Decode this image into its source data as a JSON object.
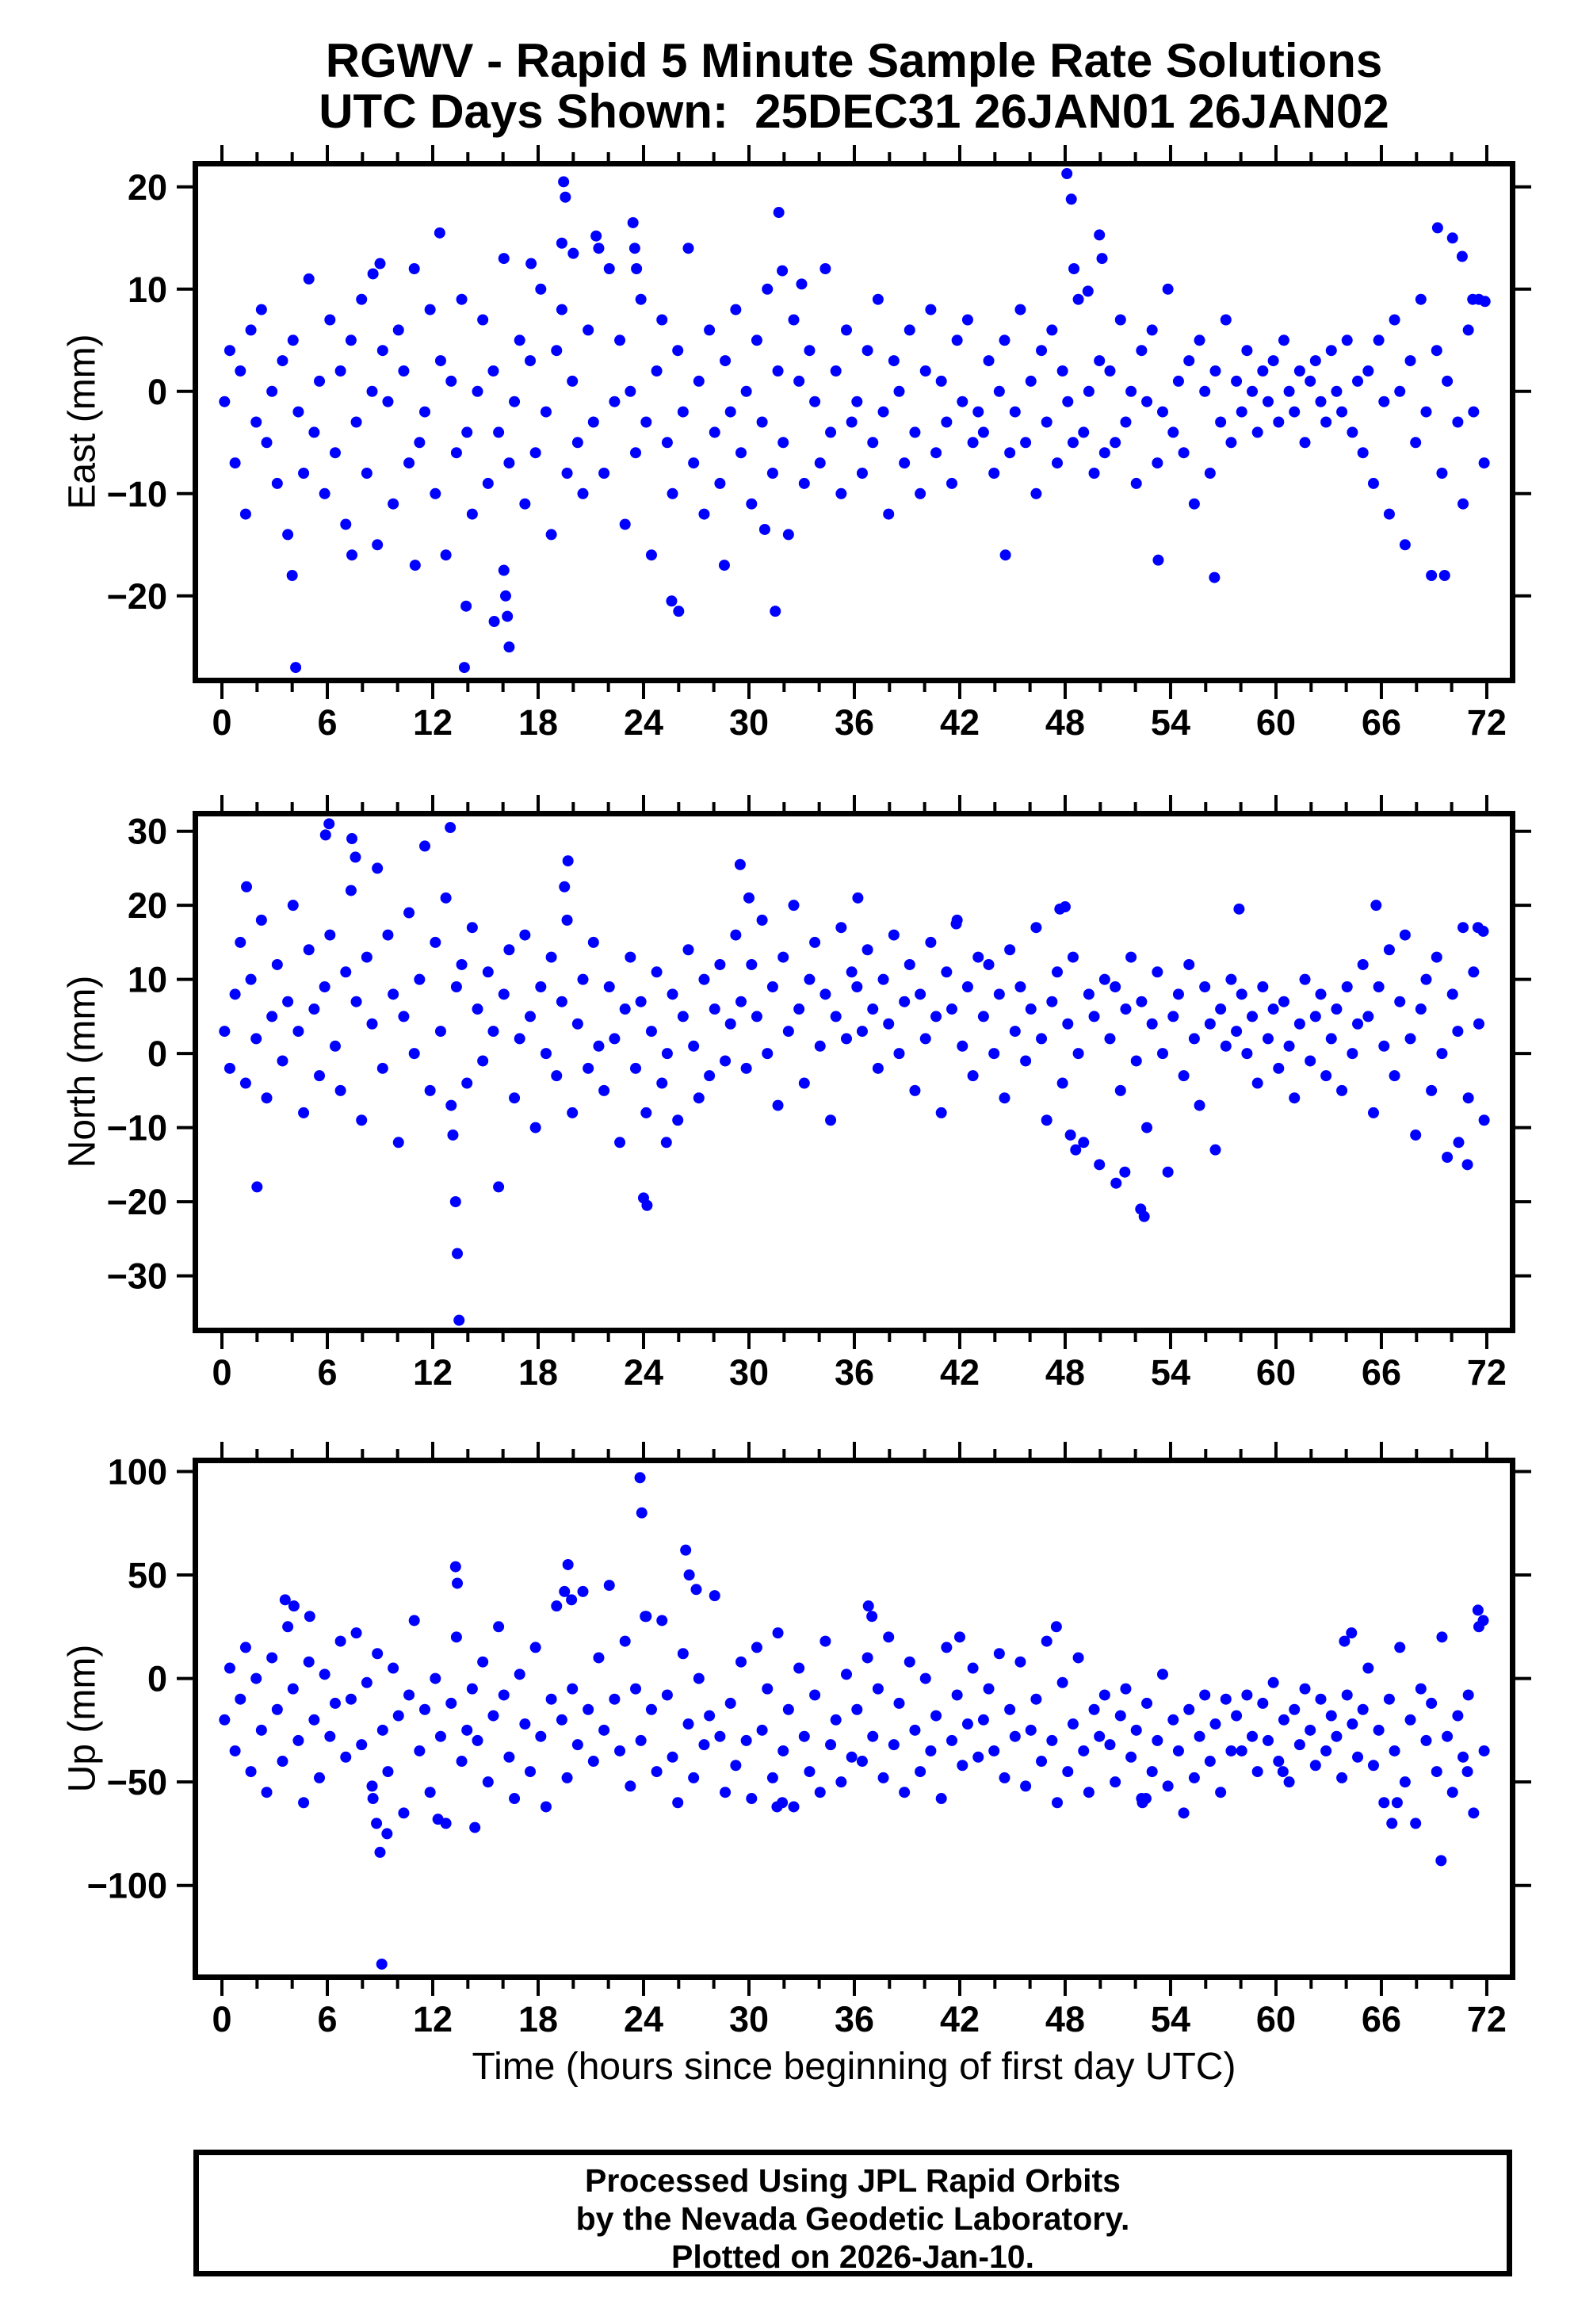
{
  "title": {
    "line1": "RGWV - Rapid 5 Minute Sample Rate Solutions",
    "line2": "UTC Days Shown:  25DEC31 26JAN01 26JAN02"
  },
  "xlabel": "Time (hours since beginning of first day UTC)",
  "footer": {
    "line1": "Processed Using JPL Rapid Orbits",
    "line2": "by the Nevada Geodetic Laboratory.",
    "line3": "Plotted on 2026-Jan-10."
  },
  "colors": {
    "point": "#0000ff",
    "axis": "#000000",
    "background": "#ffffff"
  },
  "axes": {
    "x": {
      "range": [
        -1.35,
        73.35
      ],
      "major_ticks": [
        0,
        6,
        12,
        18,
        24,
        30,
        36,
        42,
        48,
        54,
        60,
        66,
        72
      ],
      "minor_step": 2,
      "tick_labels": [
        "0",
        "6",
        "12",
        "18",
        "24",
        "30",
        "36",
        "42",
        "48",
        "54",
        "60",
        "66",
        "72"
      ]
    }
  },
  "chart_data": [
    {
      "type": "scatter",
      "name": "east",
      "ylabel": "East (mm)",
      "ylim": [
        -28,
        22
      ],
      "yticks": [
        -20,
        -10,
        0,
        10,
        20
      ],
      "x_start": 0.15,
      "x_step": 0.3,
      "y": [
        -1,
        4,
        -7,
        2,
        -12,
        6,
        -3,
        8,
        -5,
        0,
        -9,
        3,
        -14,
        5,
        -2,
        -8,
        11,
        -4,
        1,
        -10,
        7,
        -6,
        2,
        -13,
        5,
        -3,
        9,
        -8,
        0,
        -15,
        4,
        -1,
        -11,
        6,
        2,
        -7,
        12,
        -5,
        -2,
        8,
        -10,
        3,
        -16,
        1,
        -6,
        9,
        -4,
        -12,
        0,
        7,
        -9,
        2,
        -4,
        13,
        -7,
        -1,
        5,
        -11,
        3,
        -6,
        10,
        -2,
        -14,
        4,
        8,
        -8,
        1,
        -5,
        -10,
        6,
        -3,
        14,
        -8,
        12,
        -1,
        5,
        -13,
        0,
        -6,
        9,
        -3,
        -16,
        2,
        7,
        -5,
        -10,
        4,
        -2,
        14,
        -7,
        1,
        -12,
        6,
        -4,
        -9,
        3,
        -2,
        8,
        -6,
        0,
        -11,
        5,
        -3,
        10,
        -8,
        2,
        -5,
        -14,
        7,
        1,
        -9,
        4,
        -1,
        -7,
        12,
        -4,
        2,
        -10,
        6,
        -3,
        -1,
        -8,
        4,
        -5,
        9,
        -2,
        -12,
        3,
        0,
        -7,
        6,
        -4,
        -10,
        2,
        8,
        -6,
        1,
        -3,
        -9,
        5,
        -1,
        7,
        -5,
        -2,
        -4,
        3,
        -8,
        0,
        5,
        -6,
        -2,
        8,
        -5,
        1,
        -10,
        4,
        -3,
        6,
        -7,
        2,
        -1,
        -5,
        9,
        -4,
        0,
        -8,
        3,
        -6,
        2,
        -5,
        7,
        -3,
        0,
        -9,
        4,
        -1,
        6,
        -7,
        -2,
        10,
        -4,
        1,
        -6,
        3,
        -11,
        5,
        0,
        -8,
        2,
        -3,
        7,
        -5,
        1,
        -2,
        4,
        0,
        -4,
        2,
        -1,
        3,
        -3,
        5,
        0,
        -2,
        2,
        -5,
        1,
        3,
        -1,
        -3,
        4,
        0,
        -2,
        5,
        -4,
        1,
        -6,
        2,
        -9,
        5,
        -1,
        -12,
        7,
        0,
        -15,
        3,
        -5,
        9,
        -2,
        -18,
        4,
        -8,
        1,
        15,
        -3,
        -11,
        6,
        -2,
        9,
        -7
      ],
      "extra_points": [
        [
          4.0,
          -18
        ],
        [
          4.2,
          -27
        ],
        [
          7.4,
          -16
        ],
        [
          8.6,
          11.5
        ],
        [
          9.0,
          12.5
        ],
        [
          11.0,
          -17
        ],
        [
          12.4,
          15.5
        ],
        [
          13.8,
          -27
        ],
        [
          13.9,
          -21
        ],
        [
          15.5,
          -22.5
        ],
        [
          16.05,
          -17.5
        ],
        [
          16.15,
          -20
        ],
        [
          16.25,
          -22
        ],
        [
          16.35,
          -25
        ],
        [
          17.6,
          12.5
        ],
        [
          19.35,
          14.5
        ],
        [
          19.45,
          20.5
        ],
        [
          19.55,
          19
        ],
        [
          20.0,
          13.5
        ],
        [
          21.3,
          15.2
        ],
        [
          23.4,
          16.5
        ],
        [
          23.5,
          14
        ],
        [
          23.6,
          12
        ],
        [
          25.6,
          -20.5
        ],
        [
          26.0,
          -21.5
        ],
        [
          28.6,
          -17
        ],
        [
          30.9,
          -13.5
        ],
        [
          31.5,
          -21.5
        ],
        [
          31.7,
          17.5
        ],
        [
          31.9,
          11.8
        ],
        [
          33.0,
          10.5
        ],
        [
          44.6,
          -16
        ],
        [
          48.1,
          21.3
        ],
        [
          48.35,
          18.8
        ],
        [
          48.5,
          12
        ],
        [
          49.3,
          9.8
        ],
        [
          49.95,
          15.3
        ],
        [
          50.1,
          13
        ],
        [
          53.3,
          -16.5
        ],
        [
          56.5,
          -18.2
        ],
        [
          69.2,
          16
        ],
        [
          69.6,
          -18
        ],
        [
          70.6,
          13.2
        ],
        [
          71.2,
          9
        ],
        [
          71.9,
          8.8
        ]
      ]
    },
    {
      "type": "scatter",
      "name": "north",
      "ylabel": "North (mm)",
      "ylim": [
        -37,
        32
      ],
      "yticks": [
        -30,
        -20,
        -10,
        0,
        10,
        20,
        30
      ],
      "x_start": 0.15,
      "x_step": 0.3,
      "y": [
        3,
        -2,
        8,
        15,
        -4,
        10,
        2,
        18,
        -6,
        5,
        12,
        -1,
        7,
        20,
        3,
        -8,
        14,
        6,
        -3,
        9,
        16,
        1,
        -5,
        11,
        22,
        7,
        -9,
        13,
        4,
        25,
        -2,
        16,
        8,
        -12,
        5,
        19,
        0,
        10,
        28,
        -5,
        15,
        3,
        21,
        -7,
        9,
        12,
        -4,
        17,
        6,
        -1,
        11,
        3,
        -18,
        8,
        14,
        -6,
        2,
        16,
        5,
        -10,
        9,
        0,
        13,
        -3,
        7,
        18,
        -8,
        4,
        10,
        -2,
        15,
        1,
        -5,
        9,
        2,
        -12,
        6,
        13,
        -2,
        7,
        -8,
        3,
        11,
        -4,
        0,
        8,
        -9,
        5,
        14,
        1,
        -6,
        10,
        -3,
        6,
        12,
        -1,
        4,
        16,
        7,
        -2,
        12,
        5,
        18,
        0,
        9,
        -7,
        13,
        3,
        20,
        6,
        -4,
        10,
        15,
        1,
        8,
        -9,
        5,
        17,
        2,
        11,
        9,
        3,
        14,
        6,
        -2,
        10,
        4,
        16,
        0,
        7,
        12,
        -5,
        8,
        2,
        15,
        5,
        -8,
        11,
        6,
        18,
        1,
        9,
        -3,
        13,
        5,
        12,
        0,
        8,
        -6,
        14,
        3,
        9,
        -1,
        6,
        17,
        2,
        -9,
        7,
        11,
        -4,
        4,
        13,
        0,
        -12,
        8,
        5,
        -15,
        10,
        2,
        9,
        -5,
        6,
        13,
        -1,
        7,
        -10,
        4,
        11,
        0,
        -16,
        5,
        8,
        -3,
        12,
        2,
        -7,
        9,
        4,
        -13,
        6,
        1,
        10,
        3,
        8,
        0,
        5,
        -4,
        9,
        2,
        6,
        -2,
        7,
        1,
        -6,
        4,
        10,
        -1,
        5,
        8,
        -3,
        2,
        6,
        -5,
        9,
        0,
        4,
        12,
        5,
        -8,
        9,
        1,
        14,
        -3,
        7,
        16,
        2,
        -11,
        6,
        10,
        -5,
        13,
        0,
        -14,
        8,
        3,
        17,
        -6,
        11,
        4,
        -9
      ],
      "extra_points": [
        [
          1.4,
          22.5
        ],
        [
          2.0,
          -18
        ],
        [
          5.9,
          29.5
        ],
        [
          6.1,
          31
        ],
        [
          7.4,
          29
        ],
        [
          7.6,
          26.5
        ],
        [
          13.0,
          30.5
        ],
        [
          13.15,
          -11
        ],
        [
          13.3,
          -20
        ],
        [
          13.4,
          -27
        ],
        [
          13.5,
          -36
        ],
        [
          19.5,
          22.5
        ],
        [
          19.7,
          26
        ],
        [
          24.0,
          -19.5
        ],
        [
          24.2,
          -20.5
        ],
        [
          25.3,
          -12
        ],
        [
          29.5,
          25.5
        ],
        [
          30.0,
          21
        ],
        [
          36.2,
          21
        ],
        [
          41.8,
          17.5
        ],
        [
          47.7,
          19.5
        ],
        [
          48.0,
          19.8
        ],
        [
          48.3,
          -11
        ],
        [
          48.6,
          -13
        ],
        [
          50.9,
          -17.5
        ],
        [
          51.4,
          -16
        ],
        [
          52.3,
          -21
        ],
        [
          52.5,
          -22
        ],
        [
          57.9,
          19.5
        ],
        [
          65.7,
          20
        ],
        [
          70.4,
          -12
        ],
        [
          70.9,
          -15
        ],
        [
          71.5,
          17
        ],
        [
          71.8,
          16.5
        ]
      ]
    },
    {
      "type": "scatter",
      "name": "up",
      "ylabel": "Up (mm)",
      "ylim": [
        -143,
        104
      ],
      "yticks": [
        -100,
        -50,
        0,
        50,
        100
      ],
      "x_start": 0.15,
      "x_step": 0.3,
      "y": [
        -20,
        5,
        -35,
        -10,
        15,
        -45,
        0,
        -25,
        -55,
        10,
        -15,
        -40,
        25,
        -5,
        -30,
        -60,
        8,
        -20,
        -48,
        2,
        -28,
        -12,
        18,
        -38,
        -10,
        22,
        -32,
        -2,
        -52,
        12,
        -25,
        -45,
        5,
        -18,
        -65,
        -8,
        28,
        -35,
        -15,
        -55,
        0,
        -28,
        -70,
        -12,
        20,
        -40,
        -25,
        -5,
        -30,
        8,
        -50,
        -18,
        25,
        -8,
        -38,
        -58,
        2,
        -22,
        -45,
        15,
        -28,
        -62,
        -10,
        35,
        -20,
        -48,
        -5,
        -32,
        42,
        -15,
        -40,
        10,
        -25,
        45,
        -10,
        -35,
        18,
        -52,
        -5,
        -30,
        30,
        -15,
        -45,
        28,
        -8,
        -38,
        -60,
        12,
        -22,
        -48,
        0,
        -32,
        -18,
        40,
        -28,
        -55,
        -12,
        -42,
        8,
        -30,
        -58,
        15,
        -25,
        -5,
        -48,
        22,
        -35,
        -15,
        -62,
        5,
        -28,
        -45,
        -8,
        -55,
        18,
        -32,
        -20,
        -50,
        2,
        -38,
        -15,
        -40,
        10,
        -28,
        -5,
        -48,
        20,
        -32,
        -12,
        -55,
        8,
        -25,
        -45,
        0,
        -35,
        -18,
        -58,
        15,
        -30,
        -8,
        -42,
        -22,
        5,
        -38,
        -20,
        -5,
        -35,
        12,
        -48,
        -15,
        -28,
        8,
        -52,
        -25,
        -10,
        -40,
        18,
        -30,
        -60,
        -2,
        -45,
        -22,
        10,
        -35,
        -55,
        -15,
        -28,
        -8,
        -32,
        -50,
        -18,
        -5,
        -38,
        -25,
        -58,
        -12,
        -45,
        -30,
        2,
        -52,
        -20,
        -35,
        -65,
        -15,
        -48,
        -28,
        -8,
        -40,
        -22,
        -55,
        -10,
        -35,
        -18,
        -35,
        -8,
        -28,
        -45,
        -12,
        -30,
        -2,
        -40,
        -20,
        -50,
        -15,
        -32,
        -5,
        -25,
        -42,
        -10,
        -35,
        -18,
        -28,
        -48,
        -8,
        -22,
        -38,
        -15,
        5,
        -42,
        -25,
        -60,
        -10,
        -35,
        15,
        -50,
        -20,
        -70,
        -5,
        -30,
        -12,
        -45,
        20,
        -28,
        -55,
        -18,
        -38,
        -8,
        -65,
        25,
        -35
      ],
      "extra_points": [
        [
          3.6,
          38
        ],
        [
          4.1,
          35
        ],
        [
          5.0,
          30
        ],
        [
          8.6,
          -58
        ],
        [
          8.8,
          -70
        ],
        [
          9.0,
          -84
        ],
        [
          9.1,
          -138
        ],
        [
          9.4,
          -75
        ],
        [
          12.3,
          -68
        ],
        [
          13.3,
          54
        ],
        [
          13.4,
          46
        ],
        [
          14.4,
          -72
        ],
        [
          19.5,
          42
        ],
        [
          19.7,
          55
        ],
        [
          19.9,
          38
        ],
        [
          23.8,
          97
        ],
        [
          23.9,
          80
        ],
        [
          24.1,
          30
        ],
        [
          26.4,
          62
        ],
        [
          26.6,
          50
        ],
        [
          27.0,
          43
        ],
        [
          31.6,
          -62
        ],
        [
          31.9,
          -60
        ],
        [
          36.8,
          35
        ],
        [
          37.0,
          30
        ],
        [
          42.0,
          20
        ],
        [
          47.5,
          25
        ],
        [
          52.4,
          -60
        ],
        [
          52.6,
          -58
        ],
        [
          60.4,
          -45
        ],
        [
          63.9,
          18
        ],
        [
          64.3,
          22
        ],
        [
          66.6,
          -70
        ],
        [
          66.9,
          -60
        ],
        [
          69.4,
          -88
        ],
        [
          70.9,
          -45
        ],
        [
          71.5,
          33
        ],
        [
          71.8,
          28
        ]
      ]
    }
  ]
}
